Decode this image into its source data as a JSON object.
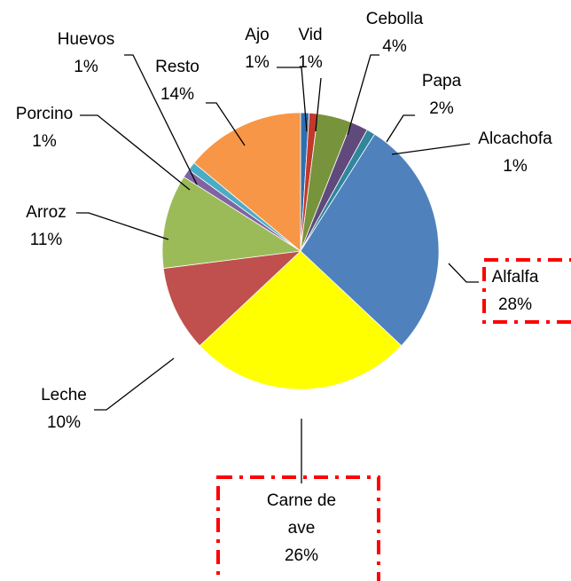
{
  "chart_data": {
    "type": "pie",
    "categories": [
      "Ajo",
      "Vid",
      "Cebolla",
      "Papa",
      "Alcachofa",
      "Alfalfa",
      "Carne de ave",
      "Leche",
      "Arroz",
      "Porcino",
      "Huevos",
      "Resto"
    ],
    "values": [
      1,
      1,
      4,
      2,
      1,
      28,
      26,
      10,
      11,
      1,
      1,
      14
    ],
    "value_labels": [
      "1%",
      "1%",
      "4%",
      "2%",
      "1%",
      "28%",
      "26%",
      "10%",
      "11%",
      "1%",
      "1%",
      "14%"
    ],
    "colors": [
      "#2f6fb0",
      "#c0392b",
      "#77933c",
      "#604a7b",
      "#31859c",
      "#4f81bd",
      "#ffff00",
      "#c0504d",
      "#9bbb59",
      "#8064a2",
      "#4bacc6",
      "#f79646"
    ]
  }
}
